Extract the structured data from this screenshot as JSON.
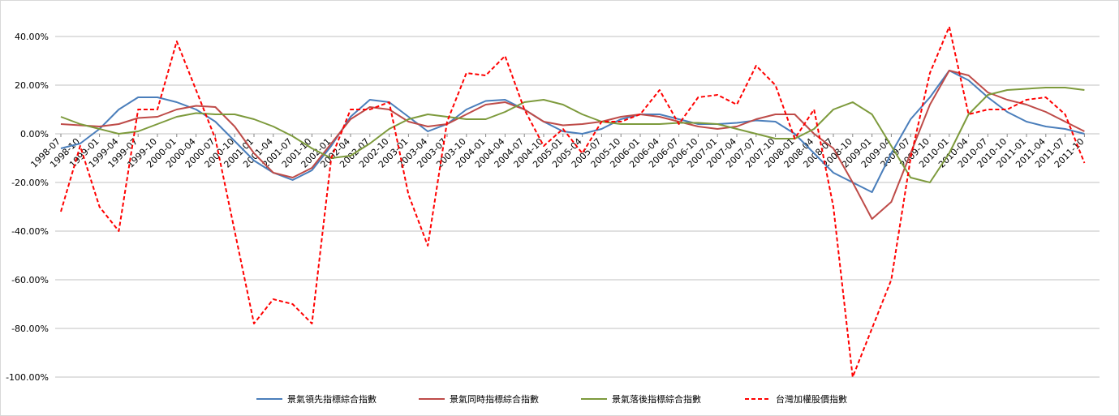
{
  "chart_data": {
    "type": "line",
    "categories": [
      "1998-07",
      "1998-10",
      "1999-01",
      "1999-04",
      "1999-07",
      "1999-10",
      "2000-01",
      "2000-04",
      "2000-07",
      "2000-10",
      "2001-01",
      "2001-04",
      "2001-07",
      "2001-10",
      "2002-01",
      "2002-04",
      "2002-07",
      "2002-10",
      "2003-01",
      "2003-04",
      "2003-07",
      "2003-10",
      "2004-01",
      "2004-04",
      "2004-07",
      "2004-10",
      "2005-01",
      "2005-04",
      "2005-07",
      "2005-10",
      "2006-01",
      "2006-04",
      "2006-07",
      "2006-10",
      "2007-01",
      "2007-04",
      "2007-07",
      "2007-10",
      "2008-01",
      "2008-04",
      "2008-07",
      "2008-10",
      "2009-01",
      "2009-04",
      "2009-07",
      "2009-10",
      "2010-01",
      "2010-04",
      "2010-07",
      "2010-10",
      "2011-01",
      "2011-04",
      "2011-07",
      "2011-10"
    ],
    "series": [
      {
        "name": "景氣領先指標綜合指數",
        "color": "#4a7ebb",
        "values": [
          -6,
          -4,
          2,
          10,
          15,
          15,
          13,
          10,
          5,
          -3,
          -11,
          -16,
          -19,
          -15,
          -5,
          7,
          14,
          13,
          7,
          1,
          4,
          10,
          13.5,
          14,
          10,
          5,
          1,
          0,
          2,
          6,
          8,
          8,
          6,
          4,
          4,
          4.5,
          5.5,
          5,
          0,
          -8,
          -16,
          -20,
          -24,
          -8,
          6,
          15,
          26,
          22,
          15,
          9,
          5,
          3,
          2,
          0
        ]
      },
      {
        "name": "景氣同時指標綜合指數",
        "color": "#be4b48",
        "values": [
          4,
          3.5,
          3,
          4,
          6.5,
          7,
          10,
          11.5,
          11,
          3,
          -8,
          -16,
          -18,
          -14,
          -4,
          6,
          11,
          10,
          5,
          3,
          4,
          8,
          12,
          13,
          10,
          5,
          3.5,
          4,
          5,
          7,
          8,
          7,
          5,
          3,
          2,
          3,
          6,
          8,
          8,
          0,
          -6,
          -20,
          -35,
          -28,
          -8,
          12,
          26,
          24,
          17,
          14,
          12,
          9,
          5,
          1
        ]
      },
      {
        "name": "景氣落後指標綜合指數",
        "color": "#7d9a3c",
        "values": [
          7,
          4,
          2,
          0,
          1,
          4,
          7,
          8.5,
          8,
          8,
          6,
          3,
          -1,
          -6,
          -10,
          -9,
          -4,
          2,
          6,
          8,
          7,
          6,
          6,
          9,
          13,
          14,
          12,
          8,
          5,
          4,
          4,
          4,
          4.5,
          4.5,
          4,
          2,
          0,
          -2,
          -2,
          2,
          10,
          13,
          8,
          -5,
          -18,
          -20,
          -8,
          8,
          16,
          18,
          18.5,
          19,
          19,
          18
        ]
      },
      {
        "name": "台灣加權股價指數",
        "color": "#ff0000",
        "dashed": true,
        "values": [
          -32,
          -5,
          -30,
          -40,
          10,
          10,
          38,
          18,
          -2,
          -40,
          -78,
          -68,
          -70,
          -78,
          -10,
          10,
          10,
          13,
          -25,
          -46,
          5,
          25,
          24,
          32,
          10,
          -5,
          2,
          -8,
          5,
          5,
          8,
          18,
          4,
          15,
          16,
          12,
          28,
          20,
          -2,
          10,
          -30,
          -100,
          -80,
          -60,
          -10,
          25,
          44,
          8,
          10,
          10,
          14,
          15,
          8,
          -12
        ]
      }
    ],
    "ylim": [
      -100,
      40
    ],
    "yticks": [
      {
        "value": -100,
        "label": "-100.00%"
      },
      {
        "value": -80,
        "label": "-80.00%"
      },
      {
        "value": -60,
        "label": "-60.00%"
      },
      {
        "value": -40,
        "label": "-40.00%"
      },
      {
        "value": -20,
        "label": "-20.00%"
      },
      {
        "value": 0,
        "label": "0.00%"
      },
      {
        "value": 20,
        "label": "20.00%"
      },
      {
        "value": 40,
        "label": "40.00%"
      }
    ],
    "grid": true,
    "legend": "bottom"
  }
}
